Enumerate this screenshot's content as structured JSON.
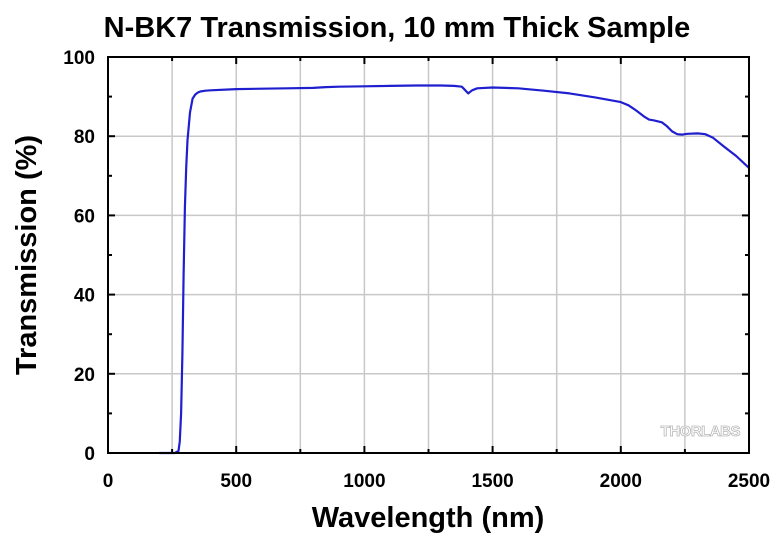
{
  "chart_data": {
    "type": "line",
    "title": "N-BK7 Transmission, 10 mm Thick Sample",
    "xlabel": "Wavelength (nm)",
    "ylabel": "Transmission (%)",
    "xlim": [
      0,
      2500
    ],
    "ylim": [
      0,
      100
    ],
    "x_ticks": [
      "0",
      "500",
      "1000",
      "1500",
      "2000",
      "2500"
    ],
    "y_ticks": [
      "0",
      "20",
      "40",
      "60",
      "80",
      "100"
    ],
    "grid": true,
    "series": [
      {
        "color": "#1f1fd0",
        "x": [
          200,
          260,
          275,
          280,
          285,
          290,
          295,
          300,
          305,
          310,
          320,
          330,
          340,
          350,
          360,
          380,
          400,
          500,
          600,
          700,
          800,
          850,
          900,
          1000,
          1100,
          1200,
          1300,
          1350,
          1380,
          1395,
          1405,
          1420,
          1440,
          1500,
          1600,
          1700,
          1800,
          1900,
          2000,
          2030,
          2060,
          2090,
          2110,
          2130,
          2160,
          2180,
          2200,
          2220,
          2240,
          2260,
          2300,
          2330,
          2360,
          2400,
          2450,
          2500
        ],
        "y": [
          0,
          0,
          0.5,
          3,
          10,
          25,
          45,
          62,
          72,
          79,
          86,
          89.5,
          90.5,
          91,
          91.3,
          91.5,
          91.6,
          91.9,
          92.0,
          92.1,
          92.2,
          92.4,
          92.5,
          92.6,
          92.7,
          92.8,
          92.8,
          92.7,
          92.5,
          91.5,
          90.8,
          91.6,
          92.1,
          92.3,
          92.1,
          91.5,
          90.8,
          89.8,
          88.6,
          87.8,
          86.5,
          85,
          84.2,
          84.0,
          83.5,
          82.5,
          81.2,
          80.5,
          80.4,
          80.6,
          80.7,
          80.5,
          79.6,
          77.5,
          75.0,
          72.0
        ]
      }
    ],
    "annotations": [
      "THORLABS"
    ]
  }
}
